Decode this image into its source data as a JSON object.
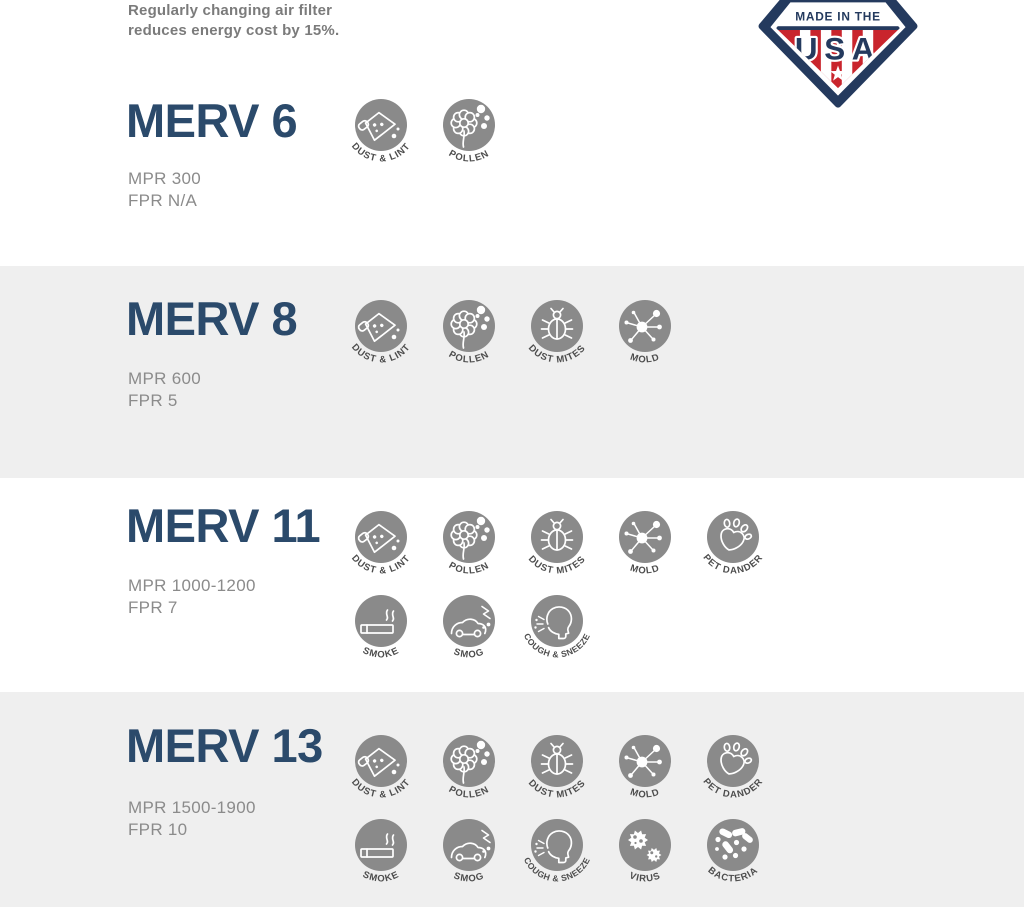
{
  "page": {
    "background": "#ffffff",
    "band_background": "#efefef",
    "navy": "#2b4a6b",
    "icon_circle_gray": "#8a8a8a",
    "icon_label_gray": "#4d4d4d",
    "muted_text_gray": "#8b8b8b",
    "intro_text_gray": "#7b7b7b",
    "badge_navy": "#243a5e",
    "badge_red": "#c9252d"
  },
  "intro": {
    "line1": "Regularly changing air filter",
    "line2": "reduces energy cost by 15%."
  },
  "badge": {
    "top_text": "MADE IN THE",
    "main_text": "USA",
    "star_icon": "star"
  },
  "icon_labels": {
    "dust-lint": "DUST & LINT",
    "pollen": "POLLEN",
    "dust-mites": "DUST MITES",
    "mold": "MOLD",
    "pet-dander": "PET DANDER",
    "smoke": "SMOKE",
    "smog": "SMOG",
    "cough-sneeze": "COUGH & SNEEZE",
    "virus": "VIRUS",
    "bacteria": "BACTERIA"
  },
  "sections": [
    {
      "id": "merv-6",
      "title": "MERV 6",
      "mpr": "MPR 300",
      "fpr": "FPR N/A",
      "icon_rows": [
        [
          "dust-lint",
          "pollen"
        ]
      ]
    },
    {
      "id": "merv-8",
      "title": "MERV 8",
      "mpr": "MPR 600",
      "fpr": "FPR 5",
      "icon_rows": [
        [
          "dust-lint",
          "pollen",
          "dust-mites",
          "mold"
        ]
      ]
    },
    {
      "id": "merv-11",
      "title": "MERV 11",
      "mpr": "MPR 1000-1200",
      "fpr": "FPR 7",
      "icon_rows": [
        [
          "dust-lint",
          "pollen",
          "dust-mites",
          "mold",
          "pet-dander"
        ],
        [
          "smoke",
          "smog",
          "cough-sneeze"
        ]
      ]
    },
    {
      "id": "merv-13",
      "title": "MERV 13",
      "mpr": "MPR 1500-1900",
      "fpr": "FPR 10",
      "icon_rows": [
        [
          "dust-lint",
          "pollen",
          "dust-mites",
          "mold",
          "pet-dander"
        ],
        [
          "smoke",
          "smog",
          "cough-sneeze",
          "virus",
          "bacteria"
        ]
      ]
    }
  ]
}
